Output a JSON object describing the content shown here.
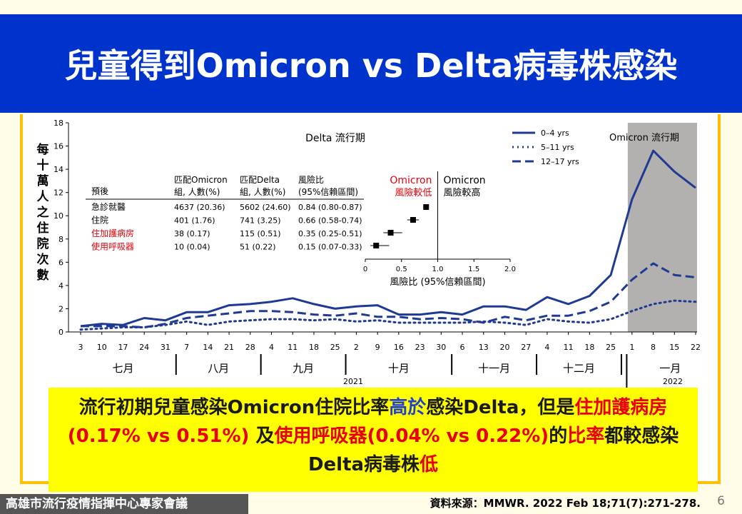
{
  "title": "兒童得到Omicron vs Delta病毒株感染",
  "chart_data": {
    "type": "line",
    "ylabel": "每十萬人之住院次數",
    "ylim": [
      0,
      18
    ],
    "yticks": [
      0,
      2,
      4,
      6,
      8,
      10,
      12,
      14,
      16,
      18
    ],
    "x_ticks": [
      "3",
      "10",
      "17",
      "24",
      "31",
      "7",
      "14",
      "21",
      "28",
      "4",
      "11",
      "18",
      "25",
      "2",
      "9",
      "16",
      "23",
      "30",
      "6",
      "13",
      "20",
      "27",
      "4",
      "11",
      "18",
      "25",
      "1",
      "8",
      "15",
      "22"
    ],
    "months": [
      "七月",
      "八月",
      "九月",
      "十月",
      "十一月",
      "十二月",
      "一月"
    ],
    "year_label_2021": "2021",
    "year_label_2022": "2022",
    "delta_period_label": "Delta 流行期",
    "omicron_period_label": "Omicron 流行期",
    "omicron_period_start_index": 25.8,
    "series": [
      {
        "name": "0–4 yrs",
        "style": "solid",
        "values": [
          0.5,
          0.7,
          0.6,
          1.2,
          1.0,
          1.7,
          1.7,
          2.3,
          2.4,
          2.6,
          2.9,
          2.4,
          2.0,
          2.2,
          2.3,
          1.5,
          1.5,
          1.7,
          1.5,
          2.2,
          2.2,
          1.9,
          3.0,
          2.4,
          3.1,
          4.9,
          11.4,
          15.6,
          13.8,
          12.4
        ]
      },
      {
        "name": "5–11 yrs",
        "style": "dotted",
        "values": [
          0.2,
          0.3,
          0.4,
          0.4,
          0.6,
          0.9,
          0.6,
          0.9,
          1.0,
          1.1,
          1.1,
          1.0,
          1.1,
          0.9,
          1.0,
          0.8,
          0.8,
          0.8,
          0.8,
          0.9,
          0.8,
          0.6,
          1.1,
          0.9,
          0.8,
          1.1,
          1.8,
          2.4,
          2.7,
          2.6
        ]
      },
      {
        "name": "12–17 yrs",
        "style": "dashed",
        "values": [
          0.5,
          0.5,
          0.5,
          0.4,
          0.7,
          1.2,
          1.4,
          1.6,
          1.8,
          1.8,
          1.7,
          1.5,
          1.4,
          1.6,
          1.3,
          1.3,
          1.1,
          1.2,
          1.1,
          0.8,
          1.3,
          1.0,
          1.4,
          1.4,
          1.8,
          2.6,
          4.5,
          5.9,
          4.9,
          4.7
        ]
      }
    ],
    "legend_position": "top-right",
    "grid": false,
    "inset_table": {
      "headers": [
        "預後",
        "匹配Omicron\n組, 人數(%)",
        "匹配Delta\n組, 人數(%)",
        "風險比\n(95%信賴區間)"
      ],
      "rows": [
        {
          "label": "急診就醫",
          "omicron": "4637 (20.36)",
          "delta": "5602 (24.60)",
          "rr": "0.84 (0.80-0.87)",
          "highlight": false
        },
        {
          "label": "住院",
          "omicron": "401 (1.76)",
          "delta": "741 (3.25)",
          "rr": "0.66 (0.58-0.74)",
          "highlight": false
        },
        {
          "label": "住加護病房",
          "omicron": "38 (0.17)",
          "delta": "115 (0.51)",
          "rr": "0.35 (0.25-0.51)",
          "highlight": true
        },
        {
          "label": "使用呼吸器",
          "omicron": "10 (0.04)",
          "delta": "51 (0.22)",
          "rr": "0.15 (0.07-0.33)",
          "highlight": true
        }
      ]
    },
    "inset_forest": {
      "type": "scatter",
      "xlabel": "風險比 (95%信賴區間)",
      "xlim": [
        0,
        2.0
      ],
      "xticks": [
        "0",
        "0.5",
        "1.0",
        "1.5",
        "2.0"
      ],
      "xtick_values": [
        0,
        0.5,
        1.0,
        1.5,
        2.0
      ],
      "left_label": "Omicron\n風險較低",
      "right_label": "Omicron\n風險較高",
      "points": [
        {
          "rr": 0.84,
          "lo": 0.8,
          "hi": 0.87
        },
        {
          "rr": 0.66,
          "lo": 0.58,
          "hi": 0.74
        },
        {
          "rr": 0.35,
          "lo": 0.25,
          "hi": 0.51
        },
        {
          "rr": 0.15,
          "lo": 0.07,
          "hi": 0.33
        }
      ]
    }
  },
  "callout": {
    "p1": "流行初期兒童感染Omicron住院比率",
    "p2": "高於",
    "p3": "感染Delta，但是",
    "p4": "住加護病房(0.17% vs 0.51%)",
    "p5": " 及",
    "p6": "使用呼吸器(0.04% vs 0.22%)",
    "p7": "的",
    "p8": "比率",
    "p9": "都較感染 Delta病毒株",
    "p10": "低"
  },
  "footer": {
    "left": "高雄市流行疫情指揮中心專家會議",
    "source": "資料來源：MMWR. 2022 Feb 18;71(7):271-278.",
    "page": "6"
  },
  "colors": {
    "line": "#1f3a93",
    "highlight": "#e8000b",
    "title_bg": "#0033cc",
    "frame": "#ffc000",
    "omicron_shade": "#b3b0b0"
  }
}
